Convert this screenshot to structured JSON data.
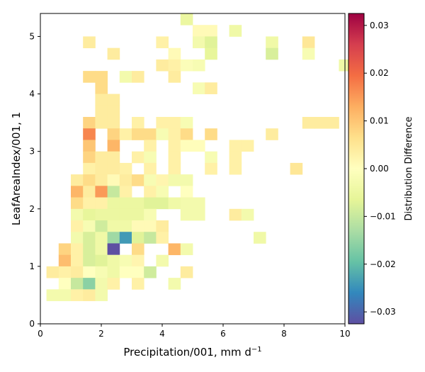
{
  "chart_data": {
    "type": "heatmap",
    "title": "",
    "xlabel": "Precipitation/001,  mm d",
    "xlabel_sup": "−1",
    "ylabel": "LeafAreaIndex/001,  1",
    "colorbar_label": "Distribution Difference",
    "colormap": "Spectral_r",
    "xlim": [
      0,
      10
    ],
    "ylim": [
      0,
      5.4
    ],
    "clim": [
      -0.0325,
      0.0325
    ],
    "bin_width_x": 0.4,
    "bin_height_y": 0.2,
    "x_ticks": [
      0,
      2,
      4,
      6,
      8,
      10
    ],
    "x_tick_labels": [
      "0",
      "2",
      "4",
      "6",
      "8",
      "10"
    ],
    "y_ticks": [
      0,
      1,
      2,
      3,
      4,
      5
    ],
    "y_tick_labels": [
      "0",
      "1",
      "2",
      "3",
      "4",
      "5"
    ],
    "colorbar_ticks": [
      -0.03,
      -0.02,
      -0.01,
      0.0,
      0.01,
      0.02,
      0.03
    ],
    "colorbar_tick_labels": [
      "−0.03",
      "−0.02",
      "−0.01",
      "0.00",
      "0.01",
      "0.02",
      "0.03"
    ],
    "cells": [
      [
        4.6,
        5.2,
        -0.005
      ],
      [
        5.0,
        5.0,
        0.001
      ],
      [
        5.4,
        5.0,
        0.001
      ],
      [
        6.2,
        5.0,
        -0.004
      ],
      [
        1.4,
        4.8,
        0.004
      ],
      [
        3.8,
        4.8,
        0.003
      ],
      [
        5.0,
        4.8,
        -0.003
      ],
      [
        5.4,
        4.8,
        -0.007
      ],
      [
        7.4,
        4.8,
        -0.004
      ],
      [
        8.6,
        4.8,
        0.005
      ],
      [
        2.2,
        4.6,
        0.004
      ],
      [
        4.2,
        4.6,
        0.001
      ],
      [
        5.4,
        4.6,
        -0.006
      ],
      [
        7.4,
        4.6,
        -0.008
      ],
      [
        8.6,
        4.6,
        -0.002
      ],
      [
        3.8,
        4.4,
        0.004
      ],
      [
        4.2,
        4.4,
        0.003
      ],
      [
        4.6,
        4.4,
        -0.001
      ],
      [
        5.0,
        4.4,
        -0.002
      ],
      [
        9.8,
        4.4,
        -0.004
      ],
      [
        1.4,
        4.2,
        0.007
      ],
      [
        1.8,
        4.2,
        0.007
      ],
      [
        2.6,
        4.2,
        -0.003
      ],
      [
        3.0,
        4.2,
        0.004
      ],
      [
        4.2,
        4.2,
        0.004
      ],
      [
        1.8,
        4.0,
        0.007
      ],
      [
        5.0,
        4.0,
        -0.002
      ],
      [
        5.4,
        4.0,
        0.004
      ],
      [
        1.8,
        3.8,
        0.004
      ],
      [
        2.2,
        3.8,
        0.004
      ],
      [
        1.8,
        3.6,
        0.004
      ],
      [
        2.2,
        3.6,
        0.004
      ],
      [
        1.4,
        3.4,
        0.008
      ],
      [
        1.8,
        3.4,
        0.004
      ],
      [
        2.2,
        3.4,
        0.004
      ],
      [
        3.0,
        3.4,
        0.003
      ],
      [
        3.8,
        3.4,
        0.003
      ],
      [
        4.2,
        3.4,
        0.003
      ],
      [
        4.6,
        3.4,
        -0.002
      ],
      [
        8.6,
        3.4,
        0.004
      ],
      [
        9.0,
        3.4,
        0.004
      ],
      [
        9.4,
        3.4,
        0.004
      ],
      [
        1.4,
        3.2,
        0.017
      ],
      [
        2.2,
        3.2,
        0.008
      ],
      [
        2.6,
        3.2,
        0.003
      ],
      [
        3.0,
        3.2,
        0.007
      ],
      [
        3.4,
        3.2,
        0.007
      ],
      [
        3.8,
        3.2,
        -0.002
      ],
      [
        4.2,
        3.2,
        0.003
      ],
      [
        4.6,
        3.2,
        0.007
      ],
      [
        5.4,
        3.2,
        0.007
      ],
      [
        7.4,
        3.2,
        0.004
      ],
      [
        1.4,
        3.0,
        0.01
      ],
      [
        2.2,
        3.0,
        0.012
      ],
      [
        3.4,
        3.0,
        0.003
      ],
      [
        4.2,
        3.0,
        0.003
      ],
      [
        4.6,
        3.0,
        0.0005
      ],
      [
        5.0,
        3.0,
        0.0005
      ],
      [
        6.2,
        3.0,
        0.003
      ],
      [
        6.6,
        3.0,
        0.003
      ],
      [
        1.4,
        2.8,
        0.008
      ],
      [
        1.8,
        2.8,
        0.004
      ],
      [
        2.2,
        2.8,
        0.004
      ],
      [
        3.0,
        2.8,
        0.003
      ],
      [
        3.4,
        2.8,
        -0.002
      ],
      [
        4.2,
        2.8,
        0.003
      ],
      [
        5.4,
        2.8,
        -0.002
      ],
      [
        6.2,
        2.8,
        0.003
      ],
      [
        1.4,
        2.6,
        0.003
      ],
      [
        1.8,
        2.6,
        0.004
      ],
      [
        2.2,
        2.6,
        0.004
      ],
      [
        2.6,
        2.6,
        0.003
      ],
      [
        3.4,
        2.6,
        0.003
      ],
      [
        4.2,
        2.6,
        0.003
      ],
      [
        5.4,
        2.6,
        0.003
      ],
      [
        6.2,
        2.6,
        0.003
      ],
      [
        8.2,
        2.6,
        0.005
      ],
      [
        1.0,
        2.4,
        0.004
      ],
      [
        1.4,
        2.4,
        0.007
      ],
      [
        1.8,
        2.4,
        0.004
      ],
      [
        2.2,
        2.4,
        0.001
      ],
      [
        2.6,
        2.4,
        0.004
      ],
      [
        3.0,
        2.4,
        0.007
      ],
      [
        3.4,
        2.4,
        -0.002
      ],
      [
        3.8,
        2.4,
        0.002
      ],
      [
        4.2,
        2.4,
        -0.003
      ],
      [
        4.6,
        2.4,
        -0.003
      ],
      [
        1.0,
        2.2,
        0.012
      ],
      [
        1.4,
        2.2,
        0.004
      ],
      [
        1.8,
        2.2,
        0.015
      ],
      [
        2.2,
        2.2,
        -0.01
      ],
      [
        2.6,
        2.2,
        0.003
      ],
      [
        3.4,
        2.2,
        0.003
      ],
      [
        3.8,
        2.2,
        -0.002
      ],
      [
        4.6,
        2.2,
        0.0
      ],
      [
        1.0,
        2.0,
        0.007
      ],
      [
        1.4,
        2.0,
        0.003
      ],
      [
        1.8,
        2.0,
        0.003
      ],
      [
        2.2,
        2.0,
        -0.005
      ],
      [
        2.6,
        2.0,
        -0.005
      ],
      [
        3.0,
        2.0,
        -0.005
      ],
      [
        3.4,
        2.0,
        -0.007
      ],
      [
        3.8,
        2.0,
        -0.007
      ],
      [
        4.2,
        2.0,
        -0.004
      ],
      [
        4.6,
        2.0,
        -0.003
      ],
      [
        5.0,
        2.0,
        -0.003
      ],
      [
        1.0,
        1.8,
        -0.003
      ],
      [
        1.4,
        1.8,
        -0.006
      ],
      [
        1.8,
        1.8,
        -0.005
      ],
      [
        2.2,
        1.8,
        -0.005
      ],
      [
        2.6,
        1.8,
        -0.005
      ],
      [
        3.0,
        1.8,
        -0.005
      ],
      [
        3.4,
        1.8,
        -0.002
      ],
      [
        4.6,
        1.8,
        -0.003
      ],
      [
        5.0,
        1.8,
        -0.003
      ],
      [
        6.2,
        1.8,
        0.004
      ],
      [
        6.6,
        1.8,
        -0.003
      ],
      [
        1.0,
        1.6,
        0.003
      ],
      [
        1.4,
        1.6,
        -0.002
      ],
      [
        1.8,
        1.6,
        -0.009
      ],
      [
        2.2,
        1.6,
        -0.004
      ],
      [
        2.6,
        1.6,
        -0.004
      ],
      [
        3.0,
        1.6,
        0.001
      ],
      [
        3.4,
        1.6,
        0.001
      ],
      [
        3.8,
        1.6,
        0.004
      ],
      [
        1.0,
        1.4,
        -0.003
      ],
      [
        1.4,
        1.4,
        -0.008
      ],
      [
        1.8,
        1.4,
        -0.004
      ],
      [
        2.2,
        1.4,
        -0.014
      ],
      [
        2.6,
        1.4,
        -0.024
      ],
      [
        3.0,
        1.4,
        -0.007
      ],
      [
        3.4,
        1.4,
        -0.01
      ],
      [
        3.8,
        1.4,
        0.003
      ],
      [
        7.0,
        1.4,
        -0.004
      ],
      [
        0.6,
        1.2,
        0.008
      ],
      [
        1.0,
        1.2,
        0.003
      ],
      [
        1.4,
        1.2,
        -0.008
      ],
      [
        1.8,
        1.2,
        -0.004
      ],
      [
        2.2,
        1.2,
        -0.033
      ],
      [
        3.0,
        1.2,
        0.007
      ],
      [
        4.2,
        1.2,
        0.012
      ],
      [
        4.6,
        1.2,
        -0.003
      ],
      [
        0.6,
        1.0,
        0.011
      ],
      [
        1.0,
        1.0,
        0.003
      ],
      [
        1.4,
        1.0,
        -0.008
      ],
      [
        1.8,
        1.0,
        -0.007
      ],
      [
        2.2,
        1.0,
        -0.004
      ],
      [
        2.6,
        1.0,
        -0.002
      ],
      [
        3.0,
        1.0,
        0.002
      ],
      [
        3.8,
        1.0,
        -0.003
      ],
      [
        0.2,
        0.8,
        0.004
      ],
      [
        0.6,
        0.8,
        0.003
      ],
      [
        1.0,
        0.8,
        0.004
      ],
      [
        1.4,
        0.8,
        0.0
      ],
      [
        1.8,
        0.8,
        -0.002
      ],
      [
        2.2,
        0.8,
        -0.004
      ],
      [
        2.6,
        0.8,
        0.0
      ],
      [
        3.0,
        0.8,
        0.0
      ],
      [
        3.4,
        0.8,
        -0.009
      ],
      [
        4.6,
        0.8,
        0.004
      ],
      [
        0.6,
        0.6,
        0.0
      ],
      [
        1.0,
        0.6,
        -0.01
      ],
      [
        1.4,
        0.6,
        -0.016
      ],
      [
        1.8,
        0.6,
        -0.003
      ],
      [
        2.2,
        0.6,
        0.003
      ],
      [
        3.0,
        0.6,
        0.003
      ],
      [
        4.2,
        0.6,
        -0.003
      ],
      [
        0.2,
        0.4,
        -0.003
      ],
      [
        0.6,
        0.4,
        -0.003
      ],
      [
        1.0,
        0.4,
        0.003
      ],
      [
        1.4,
        0.4,
        0.004
      ],
      [
        1.8,
        0.4,
        -0.003
      ]
    ]
  }
}
